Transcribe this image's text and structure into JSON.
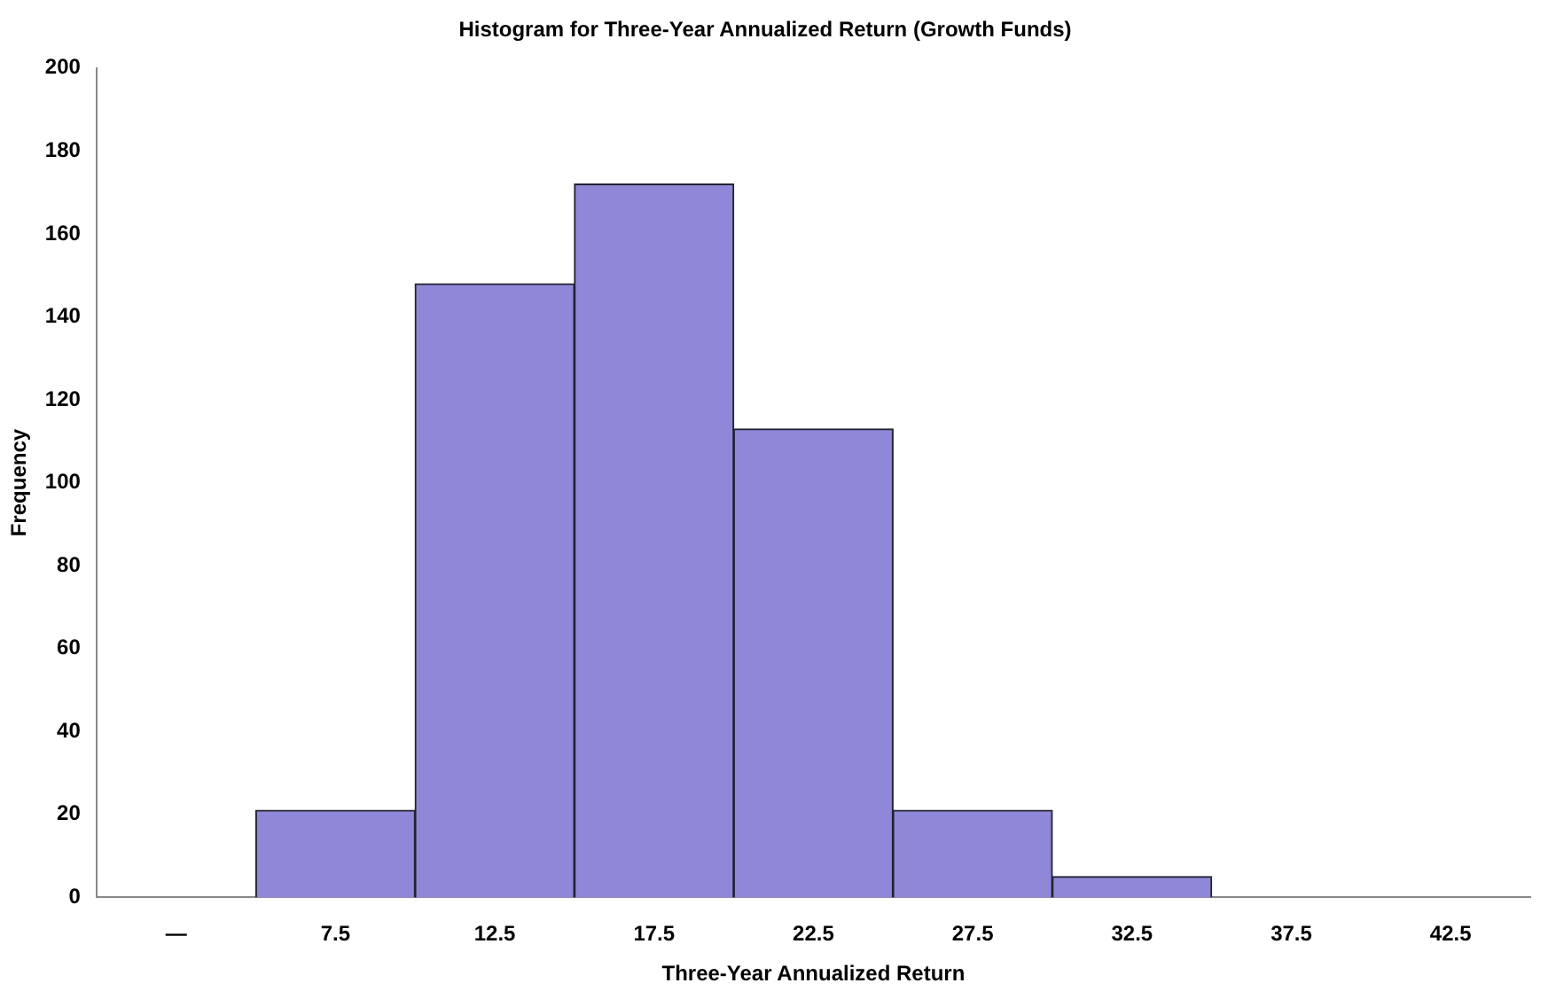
{
  "chart_data": {
    "type": "bar",
    "title": "Histogram for Three-Year Annualized Return (Growth Funds)",
    "xlabel": "Three-Year Annualized Return",
    "ylabel": "Frequency",
    "categories": [
      "—",
      "7.5",
      "12.5",
      "17.5",
      "22.5",
      "27.5",
      "32.5",
      "37.5",
      "42.5"
    ],
    "values": [
      0,
      21,
      148,
      172,
      113,
      21,
      5,
      0,
      0
    ],
    "color": "#8f88d8",
    "ylim": [
      0,
      200
    ],
    "yticks": [
      0,
      20,
      40,
      60,
      80,
      100,
      120,
      140,
      160,
      180,
      200
    ],
    "grid": false,
    "legend": false
  }
}
